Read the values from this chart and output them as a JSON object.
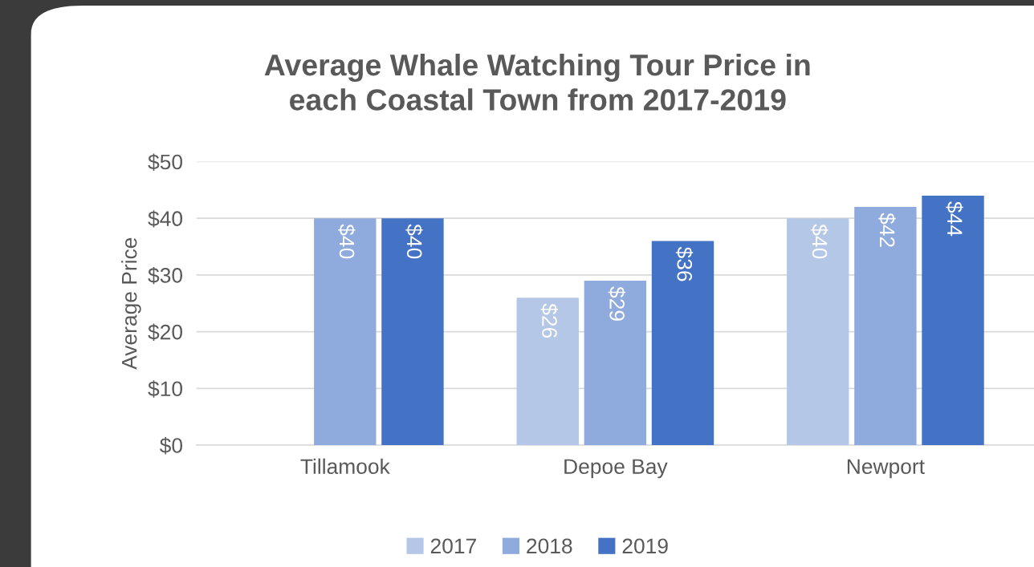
{
  "chart_data": {
    "type": "bar",
    "title": "Average Whale Watching Tour Price in\neach Coastal Town from 2017-2019",
    "ylabel": "Average Price",
    "categories": [
      "Tillamook",
      "Depoe Bay",
      "Newport"
    ],
    "series": [
      {
        "name": "2017",
        "color": "#b4c7e7",
        "values": [
          null,
          26,
          40
        ],
        "value_labels": [
          null,
          "$26",
          "$40"
        ]
      },
      {
        "name": "2018",
        "color": "#8faadc",
        "values": [
          40,
          29,
          42
        ],
        "value_labels": [
          "$40",
          "$29",
          "$42"
        ]
      },
      {
        "name": "2019",
        "color": "#4472c4",
        "values": [
          40,
          36,
          44
        ],
        "value_labels": [
          "$40",
          "$36",
          "$44"
        ]
      }
    ],
    "ylim": [
      0,
      50
    ],
    "yticks": [
      {
        "value": 0,
        "label": "$0"
      },
      {
        "value": 10,
        "label": "$10"
      },
      {
        "value": 20,
        "label": "$20"
      },
      {
        "value": 30,
        "label": "$30"
      },
      {
        "value": 40,
        "label": "$40"
      },
      {
        "value": 50,
        "label": "$50"
      }
    ],
    "grid": "y",
    "legend": "bottom"
  }
}
